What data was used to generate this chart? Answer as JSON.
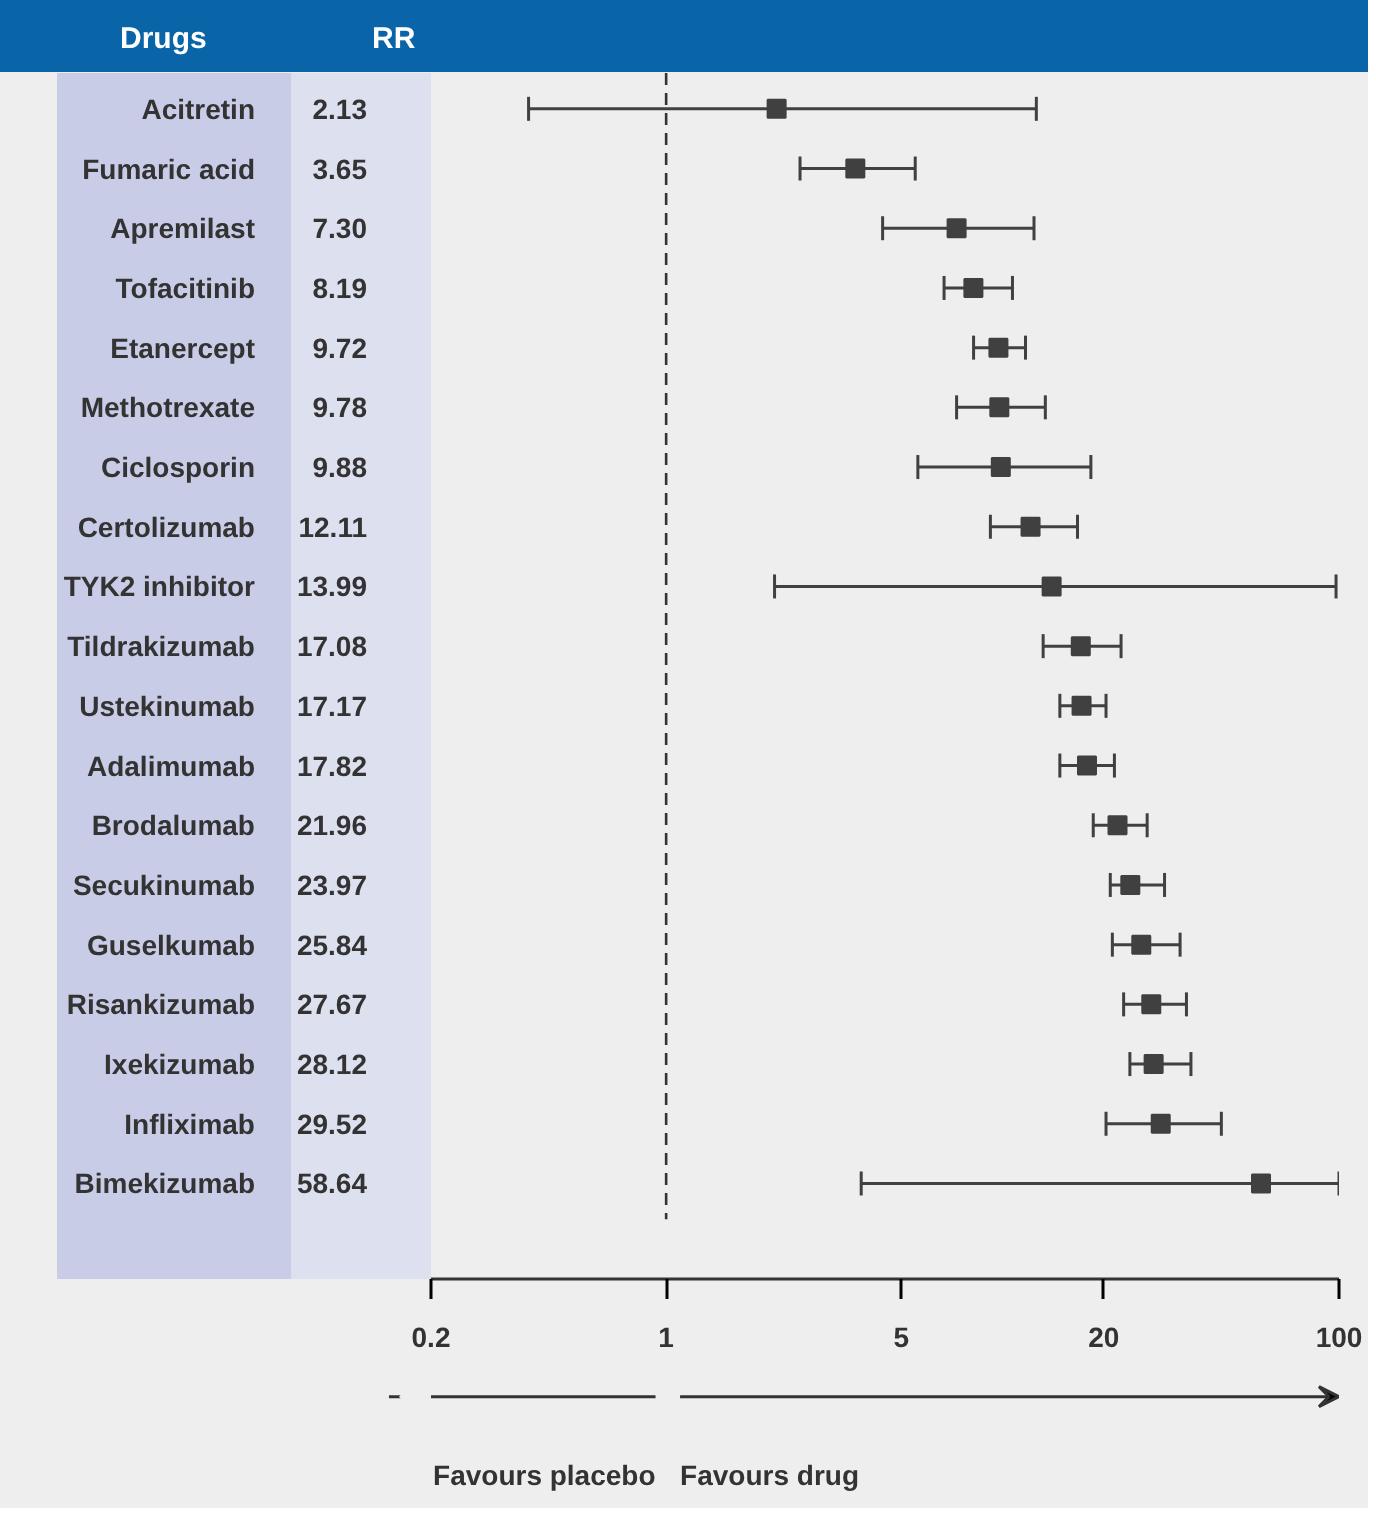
{
  "chart_data": {
    "type": "scatter",
    "orientation": "horizontal",
    "log": "x",
    "marker": "square",
    "color": "#404040",
    "grid": false,
    "categories": [
      "Acitretin",
      "Fumaric acid",
      "Apremilast",
      "Tofacitinib",
      "Etanercept",
      "Methotrexate",
      "Ciclosporin",
      "Certolizumab",
      "TYK2 inhibitor",
      "Tildrakizumab",
      "Ustekinumab",
      "Adalimumab",
      "Brodalumab",
      "Secukinumab",
      "Guselkumab",
      "Risankizumab",
      "Ixekizumab",
      "Infliximab",
      "Bimekizumab"
    ],
    "values": [
      2.13,
      3.65,
      7.3,
      8.19,
      9.72,
      9.78,
      9.88,
      12.11,
      13.99,
      17.08,
      17.17,
      17.82,
      21.96,
      23.97,
      25.84,
      27.67,
      28.12,
      29.52,
      58.64
    ],
    "value_labels": [
      "2.13",
      "3.65",
      "7.30",
      "8.19",
      "9.72",
      "9.78",
      "9.88",
      "12.11",
      "13.99",
      "17.08",
      "17.17",
      "17.82",
      "21.96",
      "23.97",
      "25.84",
      "27.67",
      "28.12",
      "29.52",
      "58.64"
    ],
    "errors": [
      [
        0.39,
        12.6
      ],
      [
        2.5,
        5.5
      ],
      [
        4.4,
        12.4
      ],
      [
        6.7,
        10.7
      ],
      [
        8.2,
        11.7
      ],
      [
        7.3,
        13.4
      ],
      [
        5.6,
        18.3
      ],
      [
        9.2,
        16.7
      ],
      [
        2.1,
        98
      ],
      [
        13.2,
        22.5
      ],
      [
        14.8,
        20.3
      ],
      [
        14.8,
        21.5
      ],
      [
        18.6,
        26.9
      ],
      [
        20.9,
        30.3
      ],
      [
        21.2,
        33.7
      ],
      [
        22.9,
        35.2
      ],
      [
        23.9,
        36.3
      ],
      [
        20.3,
        44.7
      ],
      [
        3.8,
        100
      ]
    ],
    "xlim": [
      0.2,
      100
    ],
    "xticks": [
      0.2,
      1,
      5,
      20,
      100
    ],
    "ref_lines": [
      {
        "axis": "x",
        "value": 1,
        "line_style": "dashed",
        "color": "#333333"
      }
    ],
    "annotations": [
      "Drugs",
      "RR",
      "Favours placebo",
      "Favours drug"
    ]
  }
}
